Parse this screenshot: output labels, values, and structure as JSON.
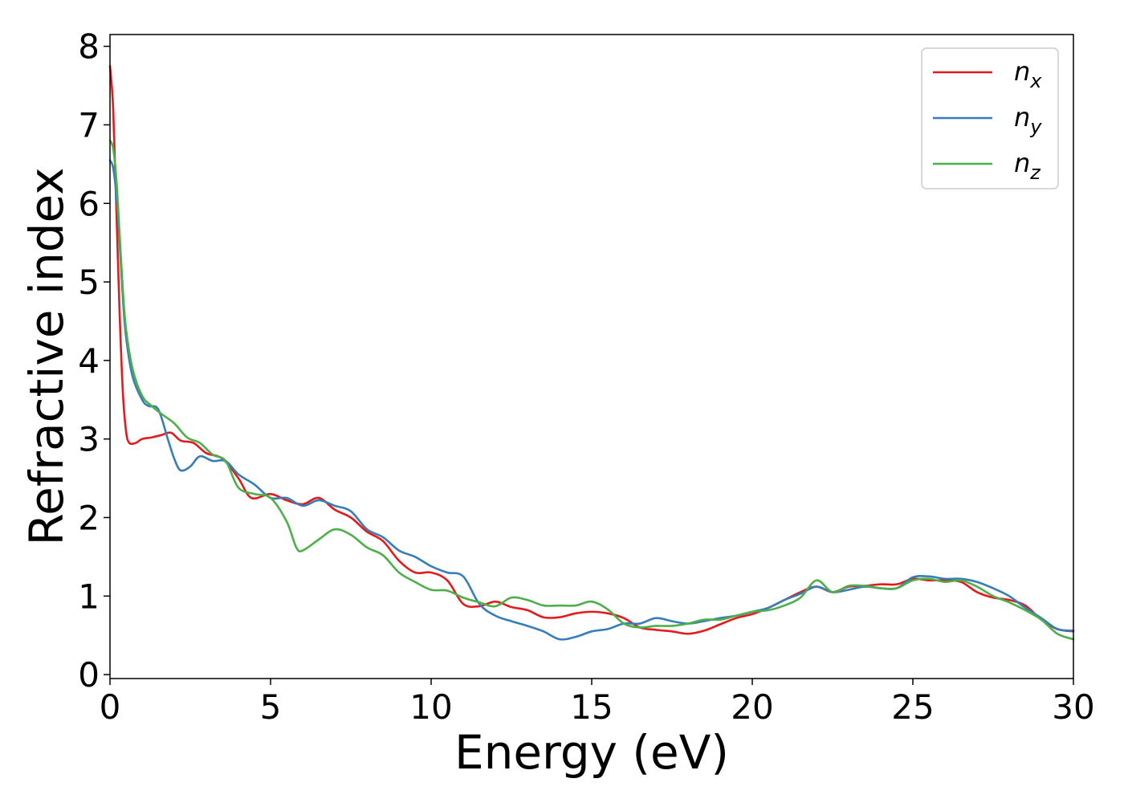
{
  "chart_data": {
    "type": "line",
    "title": "",
    "xlabel": "Energy (eV)",
    "ylabel": "Refractive index",
    "xlim": [
      0,
      30
    ],
    "ylim": [
      -0.05,
      8.15
    ],
    "xticks": [
      0,
      5,
      10,
      15,
      20,
      25,
      30
    ],
    "yticks": [
      0,
      1,
      2,
      3,
      4,
      5,
      6,
      7,
      8
    ],
    "grid": false,
    "legend_position": "top-right",
    "series": [
      {
        "name": "n_x",
        "label_base": "n",
        "label_sub": "x",
        "color": "#e41a1c",
        "x": [
          0,
          0.1,
          0.2,
          0.3,
          0.4,
          0.5,
          0.6,
          0.8,
          1.0,
          1.3,
          1.6,
          1.9,
          2.2,
          2.6,
          3.0,
          3.5,
          4.0,
          4.4,
          5.0,
          5.5,
          6.0,
          6.5,
          7.0,
          7.5,
          8.0,
          8.5,
          9.0,
          9.5,
          10.0,
          10.5,
          11.0,
          11.5,
          12.0,
          12.5,
          13.0,
          13.5,
          14.0,
          14.5,
          15.0,
          15.5,
          16.0,
          16.5,
          17.0,
          17.5,
          18.0,
          18.5,
          19.0,
          19.5,
          20.0,
          20.5,
          21.0,
          21.5,
          22.0,
          22.5,
          23.0,
          23.5,
          24.0,
          24.5,
          25.0,
          25.5,
          26.0,
          26.5,
          27.0,
          27.5,
          28.0,
          28.5,
          29.0,
          29.5,
          30.0
        ],
        "y": [
          7.75,
          7.2,
          5.9,
          4.6,
          3.6,
          3.1,
          2.95,
          2.95,
          3.0,
          3.02,
          3.05,
          3.08,
          2.98,
          2.95,
          2.82,
          2.75,
          2.5,
          2.25,
          2.3,
          2.22,
          2.17,
          2.25,
          2.1,
          2.0,
          1.82,
          1.7,
          1.45,
          1.3,
          1.3,
          1.2,
          0.9,
          0.87,
          0.93,
          0.86,
          0.82,
          0.73,
          0.73,
          0.78,
          0.8,
          0.78,
          0.72,
          0.6,
          0.57,
          0.55,
          0.52,
          0.56,
          0.64,
          0.72,
          0.77,
          0.85,
          0.95,
          1.05,
          1.12,
          1.05,
          1.12,
          1.13,
          1.15,
          1.15,
          1.22,
          1.2,
          1.2,
          1.18,
          1.05,
          0.98,
          0.95,
          0.88,
          0.7,
          0.58,
          0.55
        ]
      },
      {
        "name": "n_y",
        "label_base": "n",
        "label_sub": "y",
        "color": "#377eb8",
        "x": [
          0,
          0.1,
          0.2,
          0.3,
          0.4,
          0.5,
          0.7,
          1.0,
          1.2,
          1.5,
          1.8,
          2.0,
          2.2,
          2.5,
          2.8,
          3.2,
          3.6,
          4.0,
          4.5,
          5.0,
          5.5,
          6.0,
          6.5,
          7.0,
          7.5,
          8.0,
          8.5,
          9.0,
          9.5,
          10.0,
          10.5,
          11.0,
          11.5,
          12.0,
          12.5,
          13.0,
          13.5,
          14.0,
          14.5,
          15.0,
          15.5,
          16.0,
          16.5,
          17.0,
          17.5,
          18.0,
          18.5,
          19.0,
          19.5,
          20.0,
          20.5,
          21.0,
          21.5,
          22.0,
          22.5,
          23.0,
          23.5,
          24.0,
          24.5,
          25.0,
          25.5,
          26.0,
          26.5,
          27.0,
          27.5,
          28.0,
          28.5,
          29.0,
          29.5,
          30.0
        ],
        "y": [
          6.55,
          6.45,
          6.1,
          5.5,
          4.8,
          4.3,
          3.8,
          3.5,
          3.42,
          3.38,
          3.0,
          2.75,
          2.6,
          2.65,
          2.78,
          2.72,
          2.72,
          2.55,
          2.42,
          2.25,
          2.25,
          2.15,
          2.22,
          2.15,
          2.08,
          1.85,
          1.75,
          1.58,
          1.5,
          1.38,
          1.3,
          1.25,
          0.9,
          0.75,
          0.68,
          0.62,
          0.55,
          0.45,
          0.48,
          0.55,
          0.58,
          0.65,
          0.65,
          0.72,
          0.68,
          0.65,
          0.68,
          0.72,
          0.75,
          0.8,
          0.85,
          0.95,
          1.03,
          1.12,
          1.05,
          1.08,
          1.12,
          1.1,
          1.1,
          1.24,
          1.25,
          1.22,
          1.22,
          1.18,
          1.1,
          1.0,
          0.85,
          0.72,
          0.58,
          0.56
        ]
      },
      {
        "name": "n_z",
        "label_base": "n",
        "label_sub": "z",
        "color": "#4daf4a",
        "x": [
          0,
          0.1,
          0.2,
          0.3,
          0.4,
          0.5,
          0.7,
          1.0,
          1.3,
          1.6,
          2.0,
          2.4,
          2.8,
          3.2,
          3.6,
          4.0,
          4.5,
          5.0,
          5.5,
          5.8,
          6.0,
          6.5,
          7.0,
          7.5,
          8.0,
          8.5,
          9.0,
          9.5,
          10.0,
          10.5,
          11.0,
          11.5,
          12.0,
          12.5,
          13.0,
          13.5,
          14.0,
          14.5,
          15.0,
          15.5,
          16.0,
          16.5,
          17.0,
          17.5,
          18.0,
          18.5,
          19.0,
          19.5,
          20.0,
          20.5,
          21.0,
          21.5,
          22.0,
          22.5,
          23.0,
          23.5,
          24.0,
          24.5,
          25.0,
          25.5,
          26.0,
          26.5,
          27.0,
          27.5,
          28.0,
          28.5,
          29.0,
          29.5,
          30.0
        ],
        "y": [
          6.8,
          6.7,
          6.3,
          5.6,
          4.9,
          4.4,
          3.9,
          3.55,
          3.42,
          3.32,
          3.2,
          3.02,
          2.95,
          2.8,
          2.72,
          2.38,
          2.3,
          2.25,
          1.95,
          1.62,
          1.58,
          1.72,
          1.85,
          1.78,
          1.62,
          1.52,
          1.3,
          1.18,
          1.08,
          1.07,
          0.98,
          0.92,
          0.87,
          0.98,
          0.95,
          0.88,
          0.88,
          0.88,
          0.93,
          0.83,
          0.65,
          0.6,
          0.62,
          0.62,
          0.65,
          0.7,
          0.7,
          0.75,
          0.8,
          0.82,
          0.88,
          0.98,
          1.2,
          1.05,
          1.13,
          1.13,
          1.1,
          1.1,
          1.2,
          1.22,
          1.18,
          1.2,
          1.12,
          1.0,
          0.92,
          0.82,
          0.7,
          0.52,
          0.45
        ]
      }
    ]
  }
}
